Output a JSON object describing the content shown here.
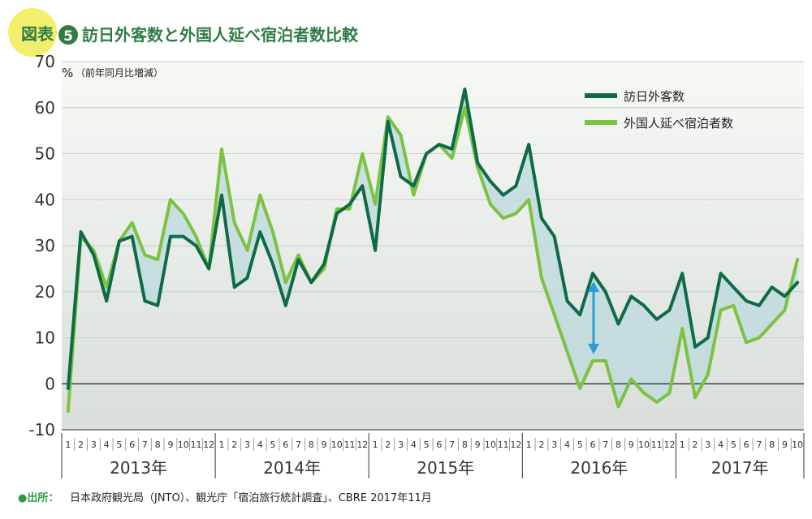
{
  "header": {
    "badge_label": "図表",
    "badge_number": "5",
    "title": "訪日外客数と外国人延べ宿泊者数比較"
  },
  "colors": {
    "series1": "#0e6b45",
    "series2": "#7cc243",
    "fill": "#bcd9dd",
    "badge": "#f3ee6c",
    "title": "#2f7d45",
    "arrow": "#2a9fd6"
  },
  "chart_data": {
    "type": "line",
    "ylabel": "%",
    "ylabel_note": "（前年同月比増減）",
    "ylim": [
      -10,
      70
    ],
    "yticks": [
      70,
      60,
      50,
      40,
      30,
      20,
      10,
      0,
      -10
    ],
    "years": [
      {
        "label": "2013年",
        "months": [
          "1",
          "2",
          "3",
          "4",
          "5",
          "6",
          "7",
          "8",
          "9",
          "10",
          "11",
          "12"
        ]
      },
      {
        "label": "2014年",
        "months": [
          "1",
          "2",
          "3",
          "4",
          "5",
          "6",
          "7",
          "8",
          "9",
          "10",
          "11",
          "12"
        ]
      },
      {
        "label": "2015年",
        "months": [
          "1",
          "2",
          "3",
          "4",
          "5",
          "6",
          "7",
          "8",
          "9",
          "10",
          "11",
          "12"
        ]
      },
      {
        "label": "2016年",
        "months": [
          "1",
          "2",
          "3",
          "4",
          "5",
          "6",
          "7",
          "8",
          "9",
          "10",
          "11",
          "12"
        ]
      },
      {
        "label": "2017年",
        "months": [
          "1",
          "2",
          "3",
          "4",
          "5",
          "6",
          "7",
          "8",
          "9",
          "10"
        ]
      }
    ],
    "legend_position": "top-right",
    "series": [
      {
        "name": "訪日外客数",
        "values": [
          -1,
          33,
          28,
          18,
          31,
          32,
          18,
          17,
          32,
          32,
          30,
          25,
          41,
          21,
          23,
          33,
          26,
          17,
          27,
          22,
          26,
          37,
          39,
          43,
          29,
          57,
          45,
          43,
          50,
          52,
          51,
          64,
          48,
          44,
          41,
          43,
          52,
          36,
          32,
          18,
          15,
          24,
          20,
          13,
          19,
          17,
          14,
          16,
          24,
          8,
          10,
          24,
          21,
          18,
          17,
          21,
          19,
          22
        ]
      },
      {
        "name": "外国人延べ宿泊者数",
        "values": [
          -6,
          32,
          29,
          21,
          31,
          35,
          28,
          27,
          40,
          37,
          32,
          25,
          51,
          35,
          29,
          41,
          33,
          22,
          28,
          22,
          25,
          38,
          38,
          50,
          39,
          58,
          54,
          41,
          50,
          52,
          49,
          60,
          47,
          39,
          36,
          37,
          40,
          23,
          15,
          7,
          -1,
          5,
          5,
          -5,
          1,
          -2,
          -4,
          -2,
          12,
          -3,
          2,
          16,
          17,
          9,
          10,
          13,
          16,
          27
        ]
      }
    ],
    "annotation": {
      "type": "double-arrow",
      "index": 41,
      "from": 24,
      "to": 5
    }
  },
  "source": {
    "label": "●出所：",
    "text": "日本政府観光局（JNTO）、観光庁「宿泊旅行統計調査」、CBRE 2017年11月"
  }
}
